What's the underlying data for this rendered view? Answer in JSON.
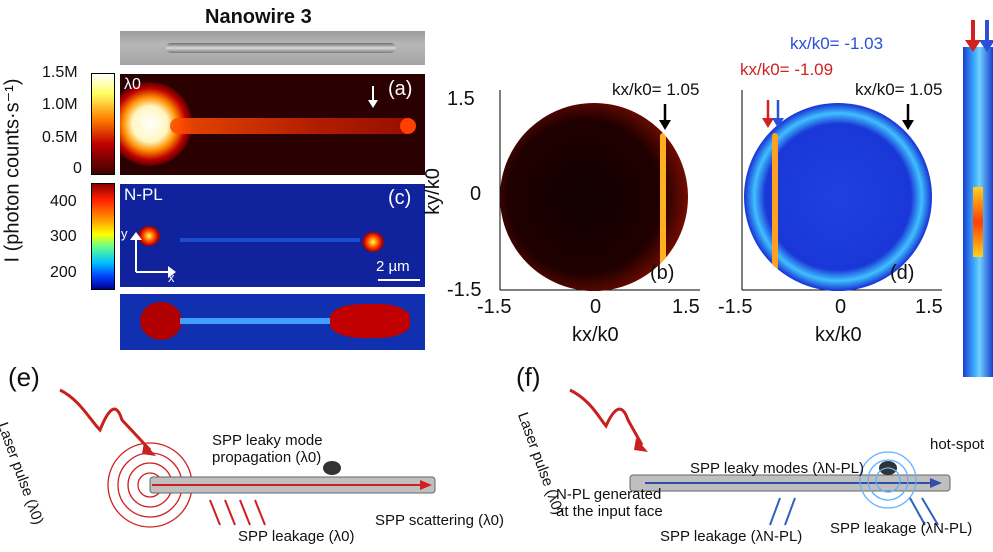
{
  "figure": {
    "title": "Nanowire 3",
    "panels": {
      "a": {
        "label": "(a)",
        "wavelength_label": "λ0"
      },
      "c": {
        "label": "(c)",
        "text": "N-PL",
        "scalebar": "2 µm",
        "axis_y": "y",
        "axis_x": "x"
      },
      "b": {
        "label": "(b)",
        "annotation": "kx/k0= 1.05"
      },
      "d": {
        "label": "(d)",
        "annotation_black": "kx/k0= 1.05",
        "annotation_red": "kx/k0= -1.09",
        "annotation_blue": "kx/k0= -1.03"
      },
      "e": {
        "label": "(e)",
        "laser": "Laser pulse (λ0)",
        "propagation": "SPP leaky mode propagation (λ0)",
        "leakage": "SPP leakage (λ0)",
        "scattering": "SPP scattering (λ0)"
      },
      "f": {
        "label": "(f)",
        "laser": "Laser pulse (λ0)",
        "modes": "SPP leaky modes (λN-PL)",
        "hotspot": "hot-spot",
        "npl": "N-PL generated at the input face",
        "leakage_left": "SPP leakage (λN-PL)",
        "leakage_right": "SPP leakage (λN-PL)"
      }
    },
    "colorbar_top": {
      "ticks": [
        "1.5M",
        "1.0M",
        "0.5M",
        "0"
      ]
    },
    "colorbar_bottom": {
      "ticks": [
        "400",
        "300",
        "200"
      ]
    },
    "y_axis_label": "I (photon counts·s⁻¹)",
    "k_axes": {
      "xlabel": "kx/k0",
      "ylabel": "ky/k0",
      "xticks": [
        "-1.5",
        "0",
        "1.5"
      ],
      "yticks": [
        "1.5",
        "0",
        "-1.5"
      ]
    },
    "colors": {
      "red": "#d42020",
      "blue": "#2a4fd8",
      "black": "#000000"
    }
  }
}
